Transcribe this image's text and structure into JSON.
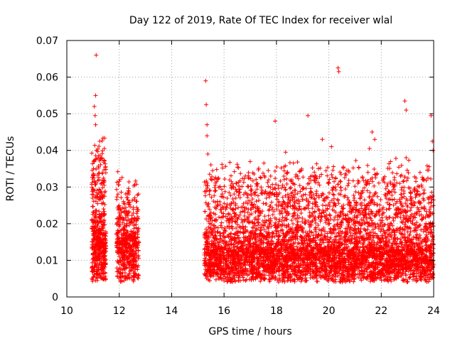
{
  "chart_data": {
    "type": "scatter",
    "title": "Day 122 of 2019, Rate Of TEC Index for receiver wlal",
    "xlabel": "GPS time / hours",
    "ylabel": "ROTI / TECUs",
    "xlim": [
      10,
      24
    ],
    "ylim": [
      0,
      0.07
    ],
    "x_ticks": [
      10,
      12,
      14,
      16,
      18,
      20,
      22,
      24
    ],
    "x_tick_labels": [
      "10",
      "12",
      "14",
      "16",
      "18",
      "20",
      "22",
      "24"
    ],
    "y_ticks": [
      0,
      0.01,
      0.02,
      0.03,
      0.04,
      0.05,
      0.06,
      0.07
    ],
    "y_tick_labels": [
      "0",
      "0.01",
      "0.02",
      "0.03",
      "0.04",
      "0.05",
      "0.06",
      "0.07"
    ],
    "grid": true,
    "marker": "+",
    "color": "#ff0000",
    "series": [
      {
        "name": "ROTI",
        "clusters": [
          {
            "x_start": 10.95,
            "x_end": 11.5,
            "base": 0.012,
            "spread": 0.03,
            "count": 520
          },
          {
            "x_start": 11.9,
            "x_end": 12.75,
            "base": 0.012,
            "spread": 0.02,
            "count": 520
          },
          {
            "x_start": 15.25,
            "x_end": 24.0,
            "base": 0.009,
            "spread": 0.025,
            "count": 5200
          }
        ],
        "notable_points": [
          {
            "x": 11.12,
            "y": 0.066
          },
          {
            "x": 11.1,
            "y": 0.055
          },
          {
            "x": 11.05,
            "y": 0.052
          },
          {
            "x": 11.08,
            "y": 0.0495
          },
          {
            "x": 11.1,
            "y": 0.047
          },
          {
            "x": 15.3,
            "y": 0.059
          },
          {
            "x": 15.32,
            "y": 0.0525
          },
          {
            "x": 15.35,
            "y": 0.047
          },
          {
            "x": 15.35,
            "y": 0.044
          },
          {
            "x": 15.38,
            "y": 0.039
          },
          {
            "x": 15.45,
            "y": 0.0335
          },
          {
            "x": 17.95,
            "y": 0.048
          },
          {
            "x": 18.35,
            "y": 0.0395
          },
          {
            "x": 19.2,
            "y": 0.0495
          },
          {
            "x": 19.75,
            "y": 0.043
          },
          {
            "x": 20.35,
            "y": 0.0625
          },
          {
            "x": 20.38,
            "y": 0.0615
          },
          {
            "x": 20.1,
            "y": 0.041
          },
          {
            "x": 21.65,
            "y": 0.045
          },
          {
            "x": 21.75,
            "y": 0.043
          },
          {
            "x": 21.55,
            "y": 0.0405
          },
          {
            "x": 22.9,
            "y": 0.0535
          },
          {
            "x": 22.95,
            "y": 0.051
          },
          {
            "x": 22.95,
            "y": 0.038
          },
          {
            "x": 23.9,
            "y": 0.0495
          },
          {
            "x": 23.95,
            "y": 0.0425
          },
          {
            "x": 23.98,
            "y": 0.04
          }
        ]
      }
    ]
  }
}
